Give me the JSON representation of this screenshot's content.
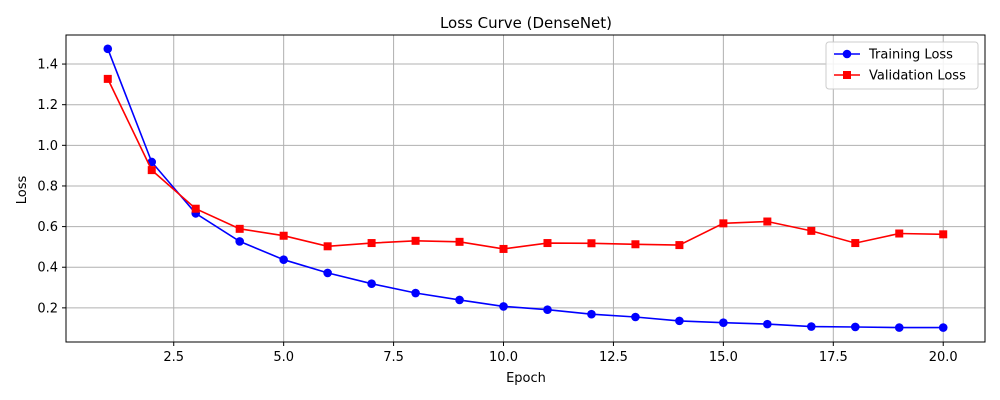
{
  "chart_data": {
    "type": "line",
    "title": "Loss Curve (DenseNet)",
    "xlabel": "Epoch",
    "ylabel": "Loss",
    "xlim": [
      0.05,
      20.95
    ],
    "ylim": [
      0.032,
      1.543
    ],
    "xticks": [
      2.5,
      5.0,
      7.5,
      10.0,
      12.5,
      15.0,
      17.5,
      20.0
    ],
    "xtick_labels": [
      "2.5",
      "5.0",
      "7.5",
      "10.0",
      "12.5",
      "15.0",
      "17.5",
      "20.0"
    ],
    "yticks": [
      0.2,
      0.4,
      0.6,
      0.8,
      1.0,
      1.2,
      1.4
    ],
    "ytick_labels": [
      "0.2",
      "0.4",
      "0.6",
      "0.8",
      "1.0",
      "1.2",
      "1.4"
    ],
    "grid": true,
    "legend_position": "top-right",
    "x": [
      1,
      2,
      3,
      4,
      5,
      6,
      7,
      8,
      9,
      10,
      11,
      12,
      13,
      14,
      15,
      16,
      17,
      18,
      19,
      20
    ],
    "series": [
      {
        "name": "Training Loss",
        "color": "#0000ff",
        "marker": "circle",
        "values": [
          1.475,
          0.918,
          0.665,
          0.527,
          0.437,
          0.372,
          0.319,
          0.273,
          0.239,
          0.207,
          0.191,
          0.169,
          0.155,
          0.136,
          0.127,
          0.12,
          0.108,
          0.106,
          0.103,
          0.103
        ]
      },
      {
        "name": "Validation Loss",
        "color": "#ff0000",
        "marker": "square",
        "values": [
          1.327,
          0.878,
          0.688,
          0.589,
          0.555,
          0.503,
          0.519,
          0.53,
          0.525,
          0.49,
          0.519,
          0.518,
          0.513,
          0.509,
          0.616,
          0.625,
          0.579,
          0.519,
          0.566,
          0.562
        ]
      }
    ]
  }
}
